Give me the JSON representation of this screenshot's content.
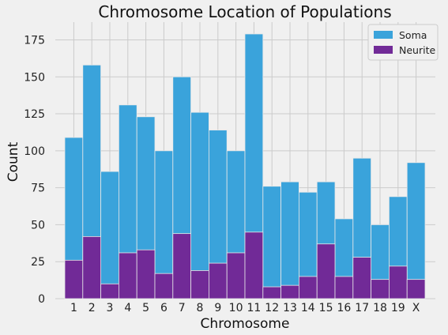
{
  "chart_data": {
    "type": "bar",
    "stacking": "overlay",
    "title": "Chromosome Location of Populations",
    "xlabel": "Chromosome",
    "ylabel": "Count",
    "categories": [
      "1",
      "2",
      "3",
      "4",
      "5",
      "6",
      "7",
      "8",
      "9",
      "10",
      "11",
      "12",
      "13",
      "14",
      "15",
      "16",
      "17",
      "18",
      "19",
      "X"
    ],
    "ylim": [
      0,
      187
    ],
    "yticks": [
      0,
      25,
      50,
      75,
      100,
      125,
      150,
      175
    ],
    "grid": true,
    "legend_position": "top-right",
    "series": [
      {
        "name": "Soma",
        "color": "#3aa3db",
        "values": [
          109,
          158,
          86,
          131,
          123,
          100,
          150,
          126,
          114,
          100,
          179,
          76,
          79,
          72,
          79,
          54,
          95,
          50,
          69,
          92
        ]
      },
      {
        "name": "Neurite",
        "color": "#712a97",
        "values": [
          26,
          42,
          10,
          31,
          33,
          17,
          44,
          19,
          24,
          31,
          45,
          8,
          9,
          15,
          37,
          15,
          28,
          13,
          22,
          13
        ]
      }
    ]
  }
}
